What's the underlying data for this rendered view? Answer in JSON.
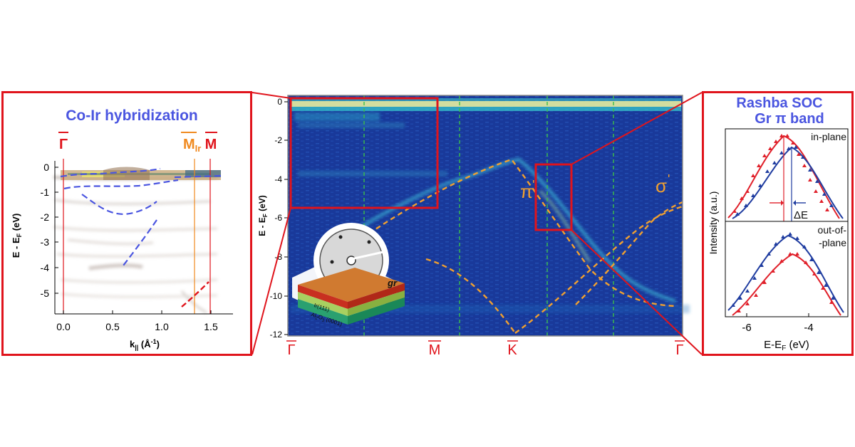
{
  "left_panel": {
    "title": "Co-Ir hybridization",
    "sym_gamma": "Γ",
    "sym_mir": "M",
    "sym_mir_sub": "Ir",
    "sym_m": "M",
    "ylabel_main": "E - E",
    "ylabel_sub": "F",
    "ylabel_unit": " (eV)",
    "xlabel_main": "k",
    "xlabel_sub": "||",
    "xlabel_unit": " (Å",
    "xlabel_sup": "-1",
    "xlabel_close": ")",
    "yticks": [
      "0",
      "-1",
      "-2",
      "-3",
      "-4",
      "-5"
    ],
    "xticks": [
      "0.0",
      "0.5",
      "1.0",
      "1.5"
    ]
  },
  "center_panel": {
    "ylabel_main": "E - E",
    "ylabel_sub": "F",
    "ylabel_unit": " (eV)",
    "yticks": [
      "0",
      "-2",
      "-4",
      "-6",
      "-8",
      "-10",
      "-12"
    ],
    "sym_gamma_left": "Γ",
    "sym_m": "M",
    "sym_k": "K",
    "sym_gamma_right": "Γ",
    "band_pi": "π",
    "band_sigma": "σ",
    "inset_gr": "gr",
    "inset_ir": "Ir(111)",
    "inset_al_main": "Al",
    "inset_al_sub1": "2",
    "inset_al_o": "O",
    "inset_al_sub2": "3",
    "inset_al_rest": " (0001)"
  },
  "right_panel": {
    "title_line1": "Rashba SOC",
    "title_line2": "Gr π band",
    "top_label": "in-plane",
    "delta": "ΔE",
    "bottom_label_line1": "out-of-",
    "bottom_label_line2": "-plane",
    "ylabel": "Intensity (a.u.)",
    "xlabel_main": "E-E",
    "xlabel_sub": "F",
    "xlabel_unit": " (eV)",
    "xticks": [
      "-6",
      "-4"
    ]
  },
  "colors": {
    "frame": "#e0141c",
    "title_blue": "#4a55e0",
    "red_curve": "#e0202a",
    "blue_curve": "#1f3ca0",
    "orange_band": "#f0a030",
    "green_guide": "#3cc04a"
  }
}
